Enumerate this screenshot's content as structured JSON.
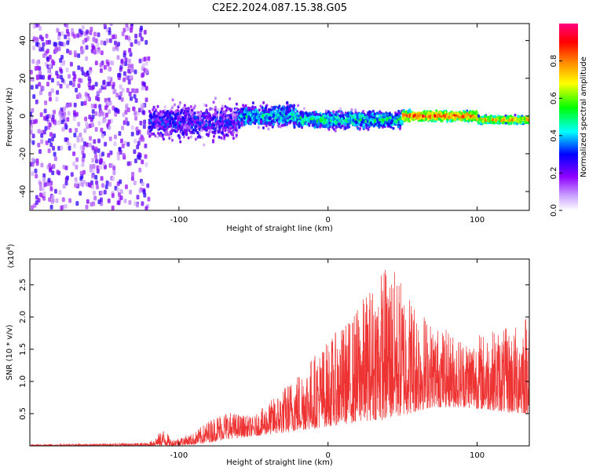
{
  "chart_data": [
    {
      "type": "heatmap",
      "title": "C2E2.2024.087.15.38.G05",
      "xlabel": "Height of straight line (km)",
      "ylabel": "Frequency (Hz)",
      "xlim": [
        -200,
        135
      ],
      "ylim": [
        -50,
        49
      ],
      "xticks": [
        "-100",
        "0",
        "100"
      ],
      "yticks": [
        "-40",
        "-20",
        "0",
        "20",
        "40"
      ],
      "colorbar": {
        "label": "Normalized spectral amplitude",
        "range": [
          0.0,
          1.0
        ],
        "ticks": [
          "0.0",
          "0.2",
          "0.4",
          "0.6",
          "0.8"
        ],
        "colors": [
          "#ffffff",
          "#8f00ff",
          "#0000ff",
          "#00ffff",
          "#00ff00",
          "#ffff00",
          "#ff8000",
          "#ff0000",
          "#ff0080"
        ]
      },
      "bands": [
        {
          "x_range": [
            -200,
            -120
          ],
          "freq_center": 0,
          "half_width": 49,
          "amplitude": 0.1
        },
        {
          "x_range": [
            -120,
            -60
          ],
          "freq_center": -3,
          "half_width": 14,
          "amplitude": 0.25
        },
        {
          "x_range": [
            -60,
            -20
          ],
          "freq_center": 0,
          "half_width": 9,
          "amplitude": 0.4
        },
        {
          "x_range": [
            -20,
            50
          ],
          "freq_center": -2,
          "half_width": 7,
          "amplitude": 0.45
        },
        {
          "x_range": [
            50,
            100
          ],
          "freq_center": 0,
          "half_width": 4,
          "amplitude": 0.85
        },
        {
          "x_range": [
            100,
            135
          ],
          "freq_center": -2,
          "half_width": 3,
          "amplitude": 0.75
        }
      ]
    },
    {
      "type": "line",
      "xlabel": "Height of straight line (km)",
      "ylabel": "SNR (10 * v/v)",
      "multiplier": "(x10",
      "multiplier_exp": "4",
      "multiplier_close": ")",
      "xlim": [
        -200,
        135
      ],
      "ylim": [
        0,
        2.9
      ],
      "xticks": [
        "-100",
        "0",
        "100"
      ],
      "yticks": [
        "0.5",
        "1.0",
        "1.5",
        "2.0",
        "2.5"
      ],
      "color": "#ee3333",
      "envelope": [
        {
          "x": -200,
          "low": 0.0,
          "high": 0.02
        },
        {
          "x": -120,
          "low": 0.0,
          "high": 0.05
        },
        {
          "x": -110,
          "low": 0.0,
          "high": 0.27
        },
        {
          "x": -105,
          "low": 0.0,
          "high": 0.1
        },
        {
          "x": -90,
          "low": 0.02,
          "high": 0.2
        },
        {
          "x": -80,
          "low": 0.05,
          "high": 0.4
        },
        {
          "x": -70,
          "low": 0.1,
          "high": 0.55
        },
        {
          "x": -50,
          "low": 0.15,
          "high": 0.45
        },
        {
          "x": -30,
          "low": 0.2,
          "high": 0.9
        },
        {
          "x": -15,
          "low": 0.25,
          "high": 1.3
        },
        {
          "x": 0,
          "low": 0.3,
          "high": 1.65
        },
        {
          "x": 15,
          "low": 0.35,
          "high": 2.0
        },
        {
          "x": 30,
          "low": 0.4,
          "high": 2.55
        },
        {
          "x": 40,
          "low": 0.4,
          "high": 2.9
        },
        {
          "x": 55,
          "low": 0.5,
          "high": 2.4
        },
        {
          "x": 70,
          "low": 0.6,
          "high": 1.9
        },
        {
          "x": 90,
          "low": 0.6,
          "high": 1.7
        },
        {
          "x": 110,
          "low": 0.55,
          "high": 1.8
        },
        {
          "x": 125,
          "low": 0.5,
          "high": 1.85
        },
        {
          "x": 135,
          "low": 0.5,
          "high": 2.2
        }
      ]
    }
  ]
}
